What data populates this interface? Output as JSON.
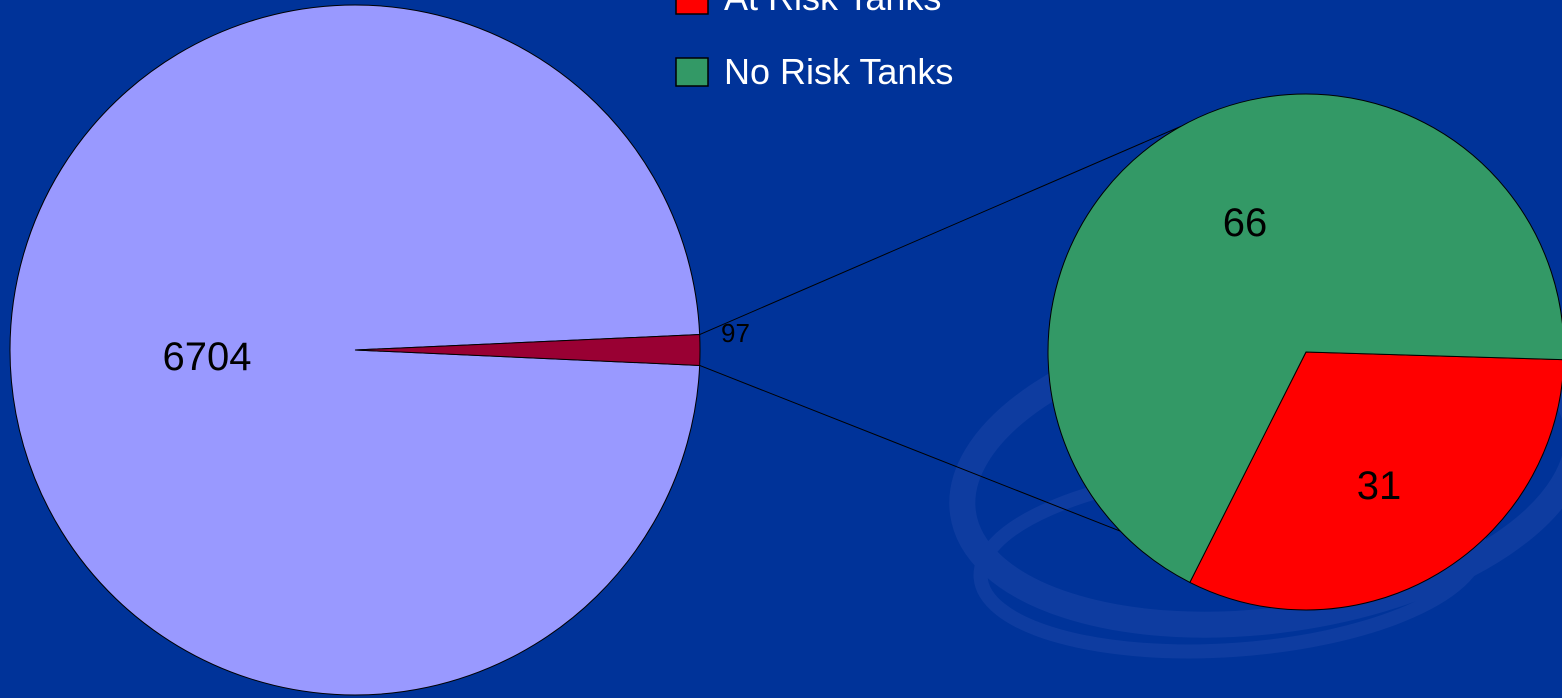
{
  "chart_data": {
    "type": "pie",
    "variant": "pie-of-pie",
    "main_pie": {
      "slices": [
        {
          "value": 6704,
          "label": "6704",
          "color": "#9999FF"
        },
        {
          "value": 97,
          "label": "97",
          "color": "#990033"
        }
      ]
    },
    "secondary_pie": {
      "slices": [
        {
          "name": "At Risk Tanks",
          "value": 31,
          "label": "31",
          "color": "#FF0000"
        },
        {
          "name": "No Risk Tanks",
          "value": 66,
          "label": "66",
          "color": "#339966"
        }
      ]
    },
    "legend": {
      "placement": "top-center",
      "items": [
        {
          "label": "At Risk Tanks",
          "color": "#FF0000"
        },
        {
          "label": "No Risk Tanks",
          "color": "#339966"
        }
      ]
    },
    "background_color": "#003399"
  }
}
